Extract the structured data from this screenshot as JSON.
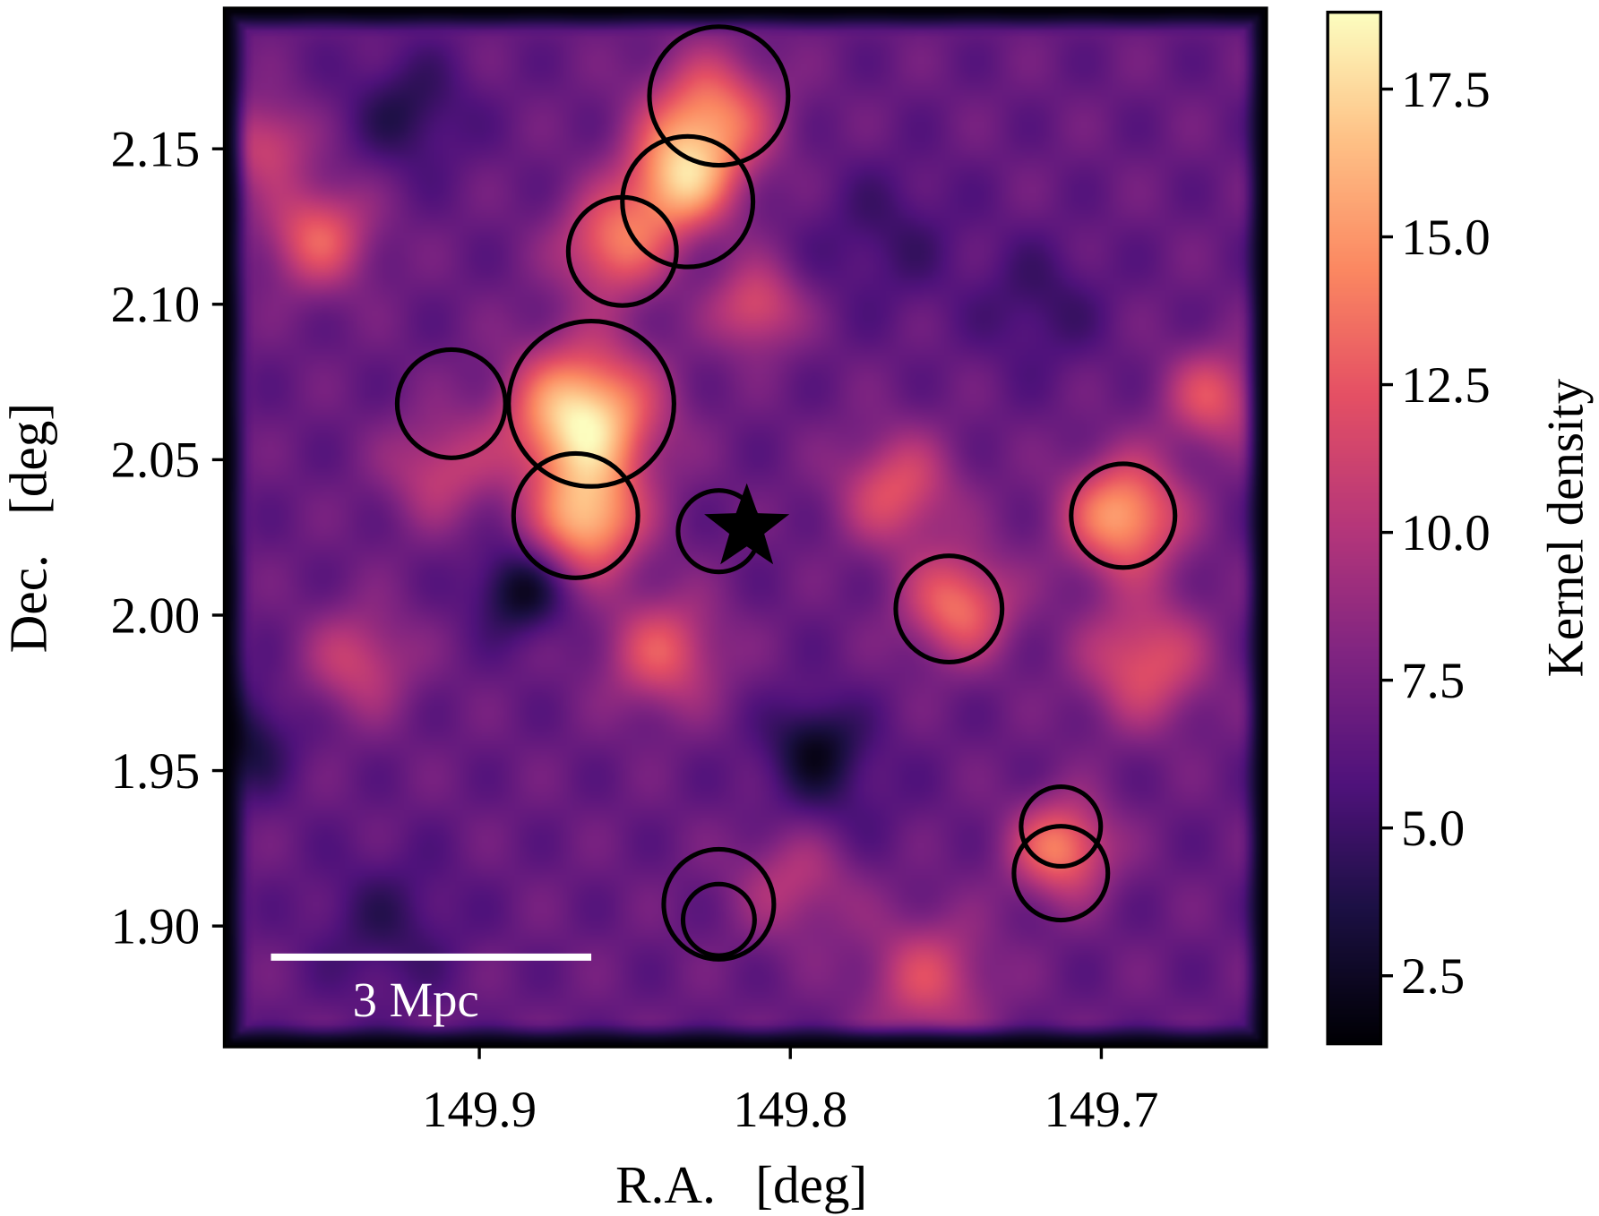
{
  "chart_data": {
    "type": "heatmap",
    "xlabel": "R.A.   [deg]",
    "ylabel": "Dec.   [deg]",
    "xlim": [
      149.982,
      149.647
    ],
    "ylim": [
      1.861,
      2.195
    ],
    "x_inverted": true,
    "xticks": [
      149.9,
      149.8,
      149.7
    ],
    "xtick_labels": [
      "149.9",
      "149.8",
      "149.7"
    ],
    "yticks": [
      1.9,
      1.95,
      2.0,
      2.05,
      2.1,
      2.15
    ],
    "ytick_labels": [
      "1.90",
      "1.95",
      "2.00",
      "2.05",
      "2.10",
      "2.15"
    ],
    "colormap": "magma",
    "colorbar": {
      "label": "Kernel density",
      "range": [
        1.35,
        18.8
      ],
      "ticks": [
        2.5,
        5.0,
        7.5,
        10.0,
        12.5,
        15.0,
        17.5
      ],
      "tick_labels": [
        "2.5",
        "5.0",
        "7.5",
        "10.0",
        "12.5",
        "15.0",
        "17.5"
      ]
    },
    "density_background": 6.8,
    "density_features": [
      {
        "ra": 149.867,
        "dec": 2.063,
        "value": 18.6,
        "sigma": 0.016
      },
      {
        "ra": 149.826,
        "dec": 2.16,
        "value": 14.5,
        "sigma": 0.014
      },
      {
        "ra": 149.836,
        "dec": 2.139,
        "value": 15.2,
        "sigma": 0.012
      },
      {
        "ra": 149.857,
        "dec": 2.119,
        "value": 13.5,
        "sigma": 0.012
      },
      {
        "ra": 149.693,
        "dec": 2.032,
        "value": 15.6,
        "sigma": 0.013
      },
      {
        "ra": 149.746,
        "dec": 2.003,
        "value": 13.6,
        "sigma": 0.012
      },
      {
        "ra": 149.713,
        "dec": 1.925,
        "value": 14.2,
        "sigma": 0.011
      },
      {
        "ra": 149.952,
        "dec": 2.122,
        "value": 12.8,
        "sigma": 0.012
      },
      {
        "ra": 149.664,
        "dec": 2.07,
        "value": 12.2,
        "sigma": 0.011
      },
      {
        "ra": 149.766,
        "dec": 2.04,
        "value": 12.2,
        "sigma": 0.013
      },
      {
        "ra": 149.841,
        "dec": 1.988,
        "value": 12.4,
        "sigma": 0.013
      },
      {
        "ra": 149.939,
        "dec": 1.985,
        "value": 11.0,
        "sigma": 0.012
      },
      {
        "ra": 149.686,
        "dec": 1.985,
        "value": 12.4,
        "sigma": 0.014
      },
      {
        "ra": 149.756,
        "dec": 1.883,
        "value": 11.6,
        "sigma": 0.014
      },
      {
        "ra": 149.811,
        "dec": 2.099,
        "value": 12.0,
        "sigma": 0.01
      },
      {
        "ra": 149.969,
        "dec": 2.152,
        "value": 11.2,
        "sigma": 0.01
      },
      {
        "ra": 149.913,
        "dec": 2.047,
        "value": 10.8,
        "sigma": 0.012
      },
      {
        "ra": 149.798,
        "dec": 1.916,
        "value": 10.6,
        "sigma": 0.014
      },
      {
        "ra": 149.865,
        "dec": 2.03,
        "value": 15.5,
        "sigma": 0.012
      },
      {
        "ra": 149.887,
        "dec": 2.008,
        "value": 2.3,
        "sigma": 0.01
      },
      {
        "ra": 149.792,
        "dec": 1.959,
        "value": 3.3,
        "sigma": 0.01
      },
      {
        "ra": 149.923,
        "dec": 2.162,
        "value": 4.0,
        "sigma": 0.013
      },
      {
        "ra": 149.978,
        "dec": 1.96,
        "value": 3.0,
        "sigma": 0.012
      },
      {
        "ra": 149.72,
        "dec": 2.1,
        "value": 4.8,
        "sigma": 0.014
      },
      {
        "ra": 149.769,
        "dec": 2.122,
        "value": 5.0,
        "sigma": 0.016
      },
      {
        "ra": 149.93,
        "dec": 1.9,
        "value": 4.6,
        "sigma": 0.016
      },
      {
        "ra": 149.79,
        "dec": 1.94,
        "value": 4.8,
        "sigma": 0.016
      }
    ],
    "circles": [
      {
        "ra": 149.823,
        "dec": 2.167,
        "radius_deg": 0.0223
      },
      {
        "ra": 149.833,
        "dec": 2.133,
        "radius_deg": 0.021
      },
      {
        "ra": 149.854,
        "dec": 2.117,
        "radius_deg": 0.0174
      },
      {
        "ra": 149.864,
        "dec": 2.068,
        "radius_deg": 0.0266
      },
      {
        "ra": 149.909,
        "dec": 2.068,
        "radius_deg": 0.0174
      },
      {
        "ra": 149.869,
        "dec": 2.032,
        "radius_deg": 0.02
      },
      {
        "ra": 149.823,
        "dec": 2.027,
        "radius_deg": 0.0131
      },
      {
        "ra": 149.749,
        "dec": 2.002,
        "radius_deg": 0.0171
      },
      {
        "ra": 149.693,
        "dec": 2.032,
        "radius_deg": 0.0167
      },
      {
        "ra": 149.713,
        "dec": 1.932,
        "radius_deg": 0.0128
      },
      {
        "ra": 149.713,
        "dec": 1.917,
        "radius_deg": 0.0151
      },
      {
        "ra": 149.823,
        "dec": 1.907,
        "radius_deg": 0.0177
      },
      {
        "ra": 149.823,
        "dec": 1.902,
        "radius_deg": 0.0115
      }
    ],
    "star": {
      "ra": 149.814,
      "dec": 2.028
    },
    "scale_bar": {
      "label": "3 Mpc",
      "ra_start": 149.967,
      "ra_end": 149.864,
      "dec": 1.89,
      "color": "#ffffff"
    }
  }
}
